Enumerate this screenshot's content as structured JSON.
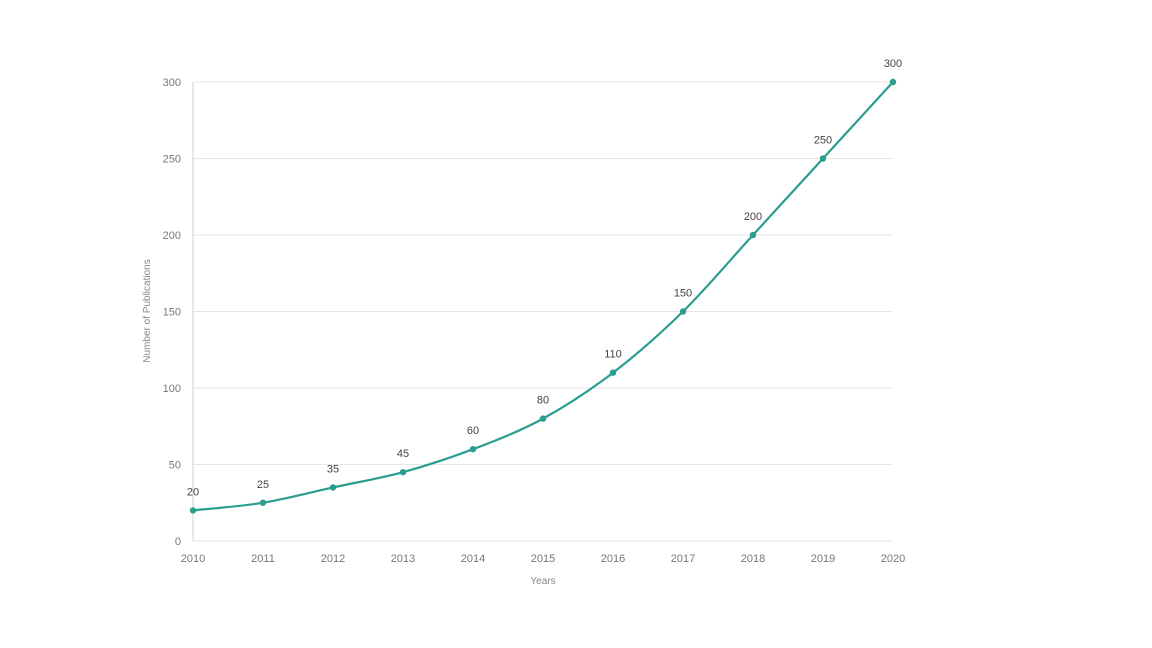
{
  "chart_data": {
    "type": "line",
    "title": "",
    "xlabel": "Years",
    "ylabel": "Number of Publications",
    "x": [
      "2010",
      "2011",
      "2012",
      "2013",
      "2014",
      "2015",
      "2016",
      "2017",
      "2018",
      "2019",
      "2020"
    ],
    "series": [
      {
        "values": [
          20,
          25,
          35,
          45,
          60,
          80,
          110,
          150,
          200,
          250,
          300
        ],
        "color": "#2a9d8f"
      }
    ],
    "ylim": [
      0,
      300
    ],
    "yticks": [
      0,
      50,
      100,
      150,
      200,
      250,
      300
    ],
    "grid": true,
    "legend": "none",
    "data_labels": true
  }
}
